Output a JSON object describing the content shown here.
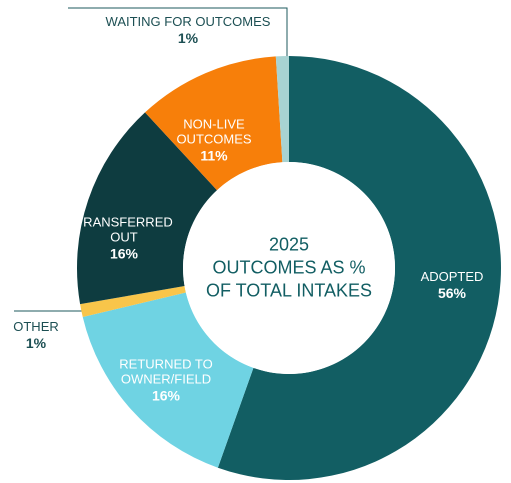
{
  "chart_data": {
    "type": "donut",
    "title": "2025\nOUTCOMES AS %\nOF TOTAL INTAKES",
    "categories": [
      "ADOPTED",
      "RETURNED TO\nOWNER/FIELD",
      "OTHER",
      "TRANSFERRED\nOUT",
      "NON-LIVE\nOUTCOMES",
      "WAITING FOR OUTCOMES"
    ],
    "values": [
      56,
      16,
      1,
      16,
      11,
      1
    ],
    "value_labels": [
      "56%",
      "16%",
      "1%",
      "16%",
      "11%",
      "1%"
    ],
    "colors": [
      "#125e63",
      "#6fd3e3",
      "#f8c54a",
      "#0e3c40",
      "#f77f0a",
      "#a8d3d2"
    ]
  }
}
